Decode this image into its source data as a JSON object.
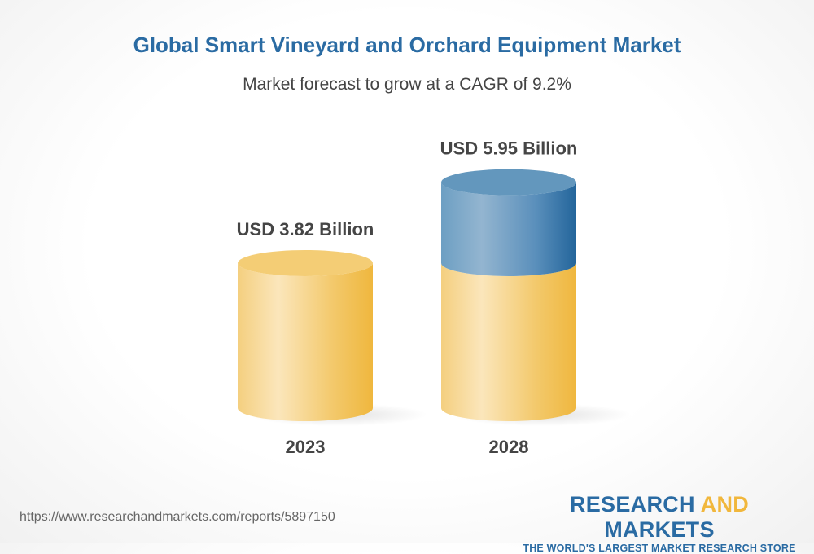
{
  "chart_data": {
    "type": "bar",
    "style": "3d-cylinder",
    "title": "Global Smart Vineyard and Orchard Equipment Market",
    "subtitle": "Market forecast to grow at a CAGR of 9.2%",
    "categories": [
      "2023",
      "2028"
    ],
    "values": [
      3.82,
      5.95
    ],
    "data_labels": [
      "USD 3.82 Billion",
      "USD 5.95 Billion"
    ],
    "unit": "USD Billion",
    "grid": false,
    "colors": {
      "base": "#f1b73c",
      "growth": "#2a6ba3"
    }
  },
  "footer": {
    "url": "https://www.researchandmarkets.com/reports/5897150",
    "logo_research": "RESEARCH",
    "logo_and": "AND",
    "logo_markets": "MARKETS",
    "logo_tagline": "THE WORLD'S LARGEST MARKET RESEARCH STORE"
  }
}
